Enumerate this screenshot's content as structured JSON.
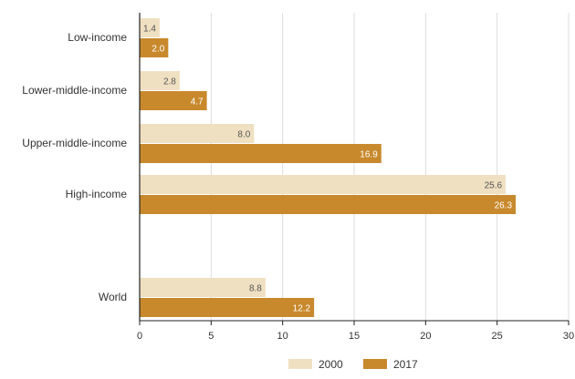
{
  "chart_data": {
    "type": "bar",
    "orientation": "horizontal",
    "categories": [
      "Low-income",
      "Lower-middle-income",
      "Upper-middle-income",
      "High-income",
      "World"
    ],
    "series": [
      {
        "name": "2000",
        "color": "#efe0c2",
        "label_color": "#555555",
        "values": [
          1.4,
          2.8,
          8.0,
          25.6,
          8.8
        ],
        "labels": [
          "1.4",
          "2.8",
          "8.0",
          "25.6",
          "8.8"
        ]
      },
      {
        "name": "2017",
        "color": "#c8892d",
        "label_color": "#ffffff",
        "values": [
          2.0,
          4.7,
          16.9,
          26.3,
          12.2
        ],
        "labels": [
          "2.0",
          "4.7",
          "16.9",
          "26.3",
          "12.2"
        ]
      }
    ],
    "xticks": [
      0,
      5,
      10,
      15,
      20,
      25,
      30
    ],
    "xtick_labels": [
      "0",
      "5",
      "10",
      "15",
      "20",
      "25",
      "30"
    ],
    "xlim": [
      0,
      30
    ],
    "grid": "vertical",
    "legend_position": "bottom-center",
    "title": "",
    "xlabel": "",
    "ylabel": ""
  },
  "colors": {
    "gridline": "#dddddd",
    "axis": "#222222",
    "text": "#333333"
  }
}
